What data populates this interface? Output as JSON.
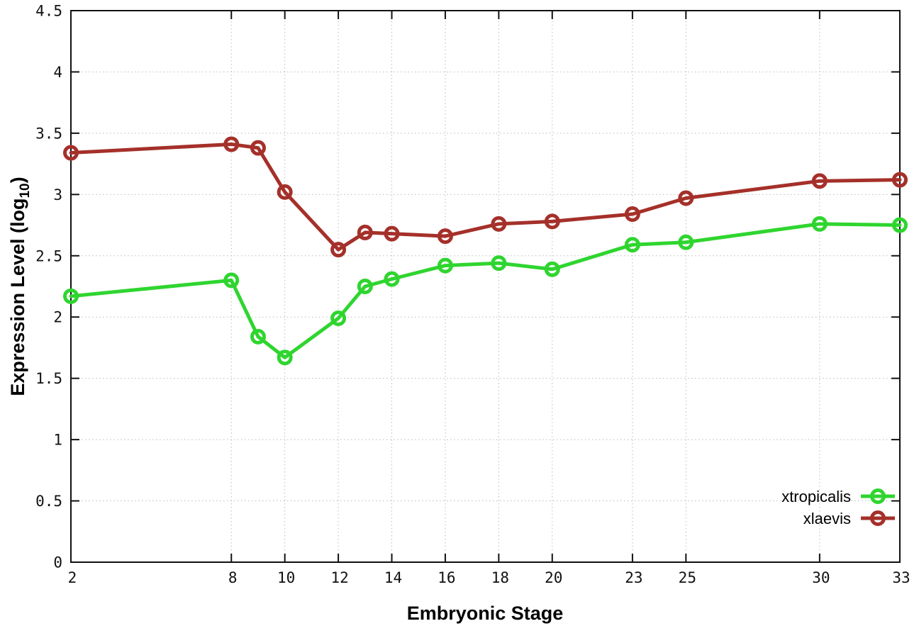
{
  "chart_data": {
    "type": "line",
    "title": "",
    "xlabel": "Embryonic Stage",
    "ylabel": "Expression Level (log10)",
    "ylabel_parts": {
      "main": "Expression Level (log",
      "sub": "10",
      "close": ")"
    },
    "xlim": [
      2,
      33
    ],
    "ylim": [
      0,
      4.5
    ],
    "grid": true,
    "legend_position": "bottom-right",
    "x": [
      2,
      8,
      9,
      10,
      12,
      13,
      14,
      16,
      18,
      20,
      23,
      25,
      30,
      33
    ],
    "xticks": [
      2,
      8,
      10,
      12,
      14,
      16,
      18,
      20,
      23,
      25,
      30,
      33
    ],
    "xtick_labels": [
      "2",
      "8",
      "10",
      "12",
      "14",
      "16",
      "18",
      "20",
      "23",
      "25",
      "30",
      "33"
    ],
    "yticks": [
      0,
      0.5,
      1,
      1.5,
      2,
      2.5,
      3,
      3.5,
      4,
      4.5
    ],
    "ytick_labels": [
      "0",
      "0.5",
      "1",
      "1.5",
      "2",
      "2.5",
      "3",
      "3.5",
      "4",
      "4.5"
    ],
    "series": [
      {
        "name": "xtropicalis",
        "color": "#2fd52f",
        "values": [
          2.17,
          2.3,
          1.84,
          1.67,
          1.99,
          2.25,
          2.31,
          2.42,
          2.44,
          2.39,
          2.59,
          2.61,
          2.76,
          2.75
        ]
      },
      {
        "name": "xlaevis",
        "color": "#a5302a",
        "values": [
          3.34,
          3.41,
          3.38,
          3.02,
          2.55,
          2.69,
          2.68,
          2.66,
          2.76,
          2.78,
          2.84,
          2.97,
          3.11,
          3.12
        ]
      }
    ],
    "style": {
      "background": "#ffffff",
      "axis_color": "#111111",
      "grid_color": "#bbbbbb",
      "text_color": "#111111"
    }
  }
}
